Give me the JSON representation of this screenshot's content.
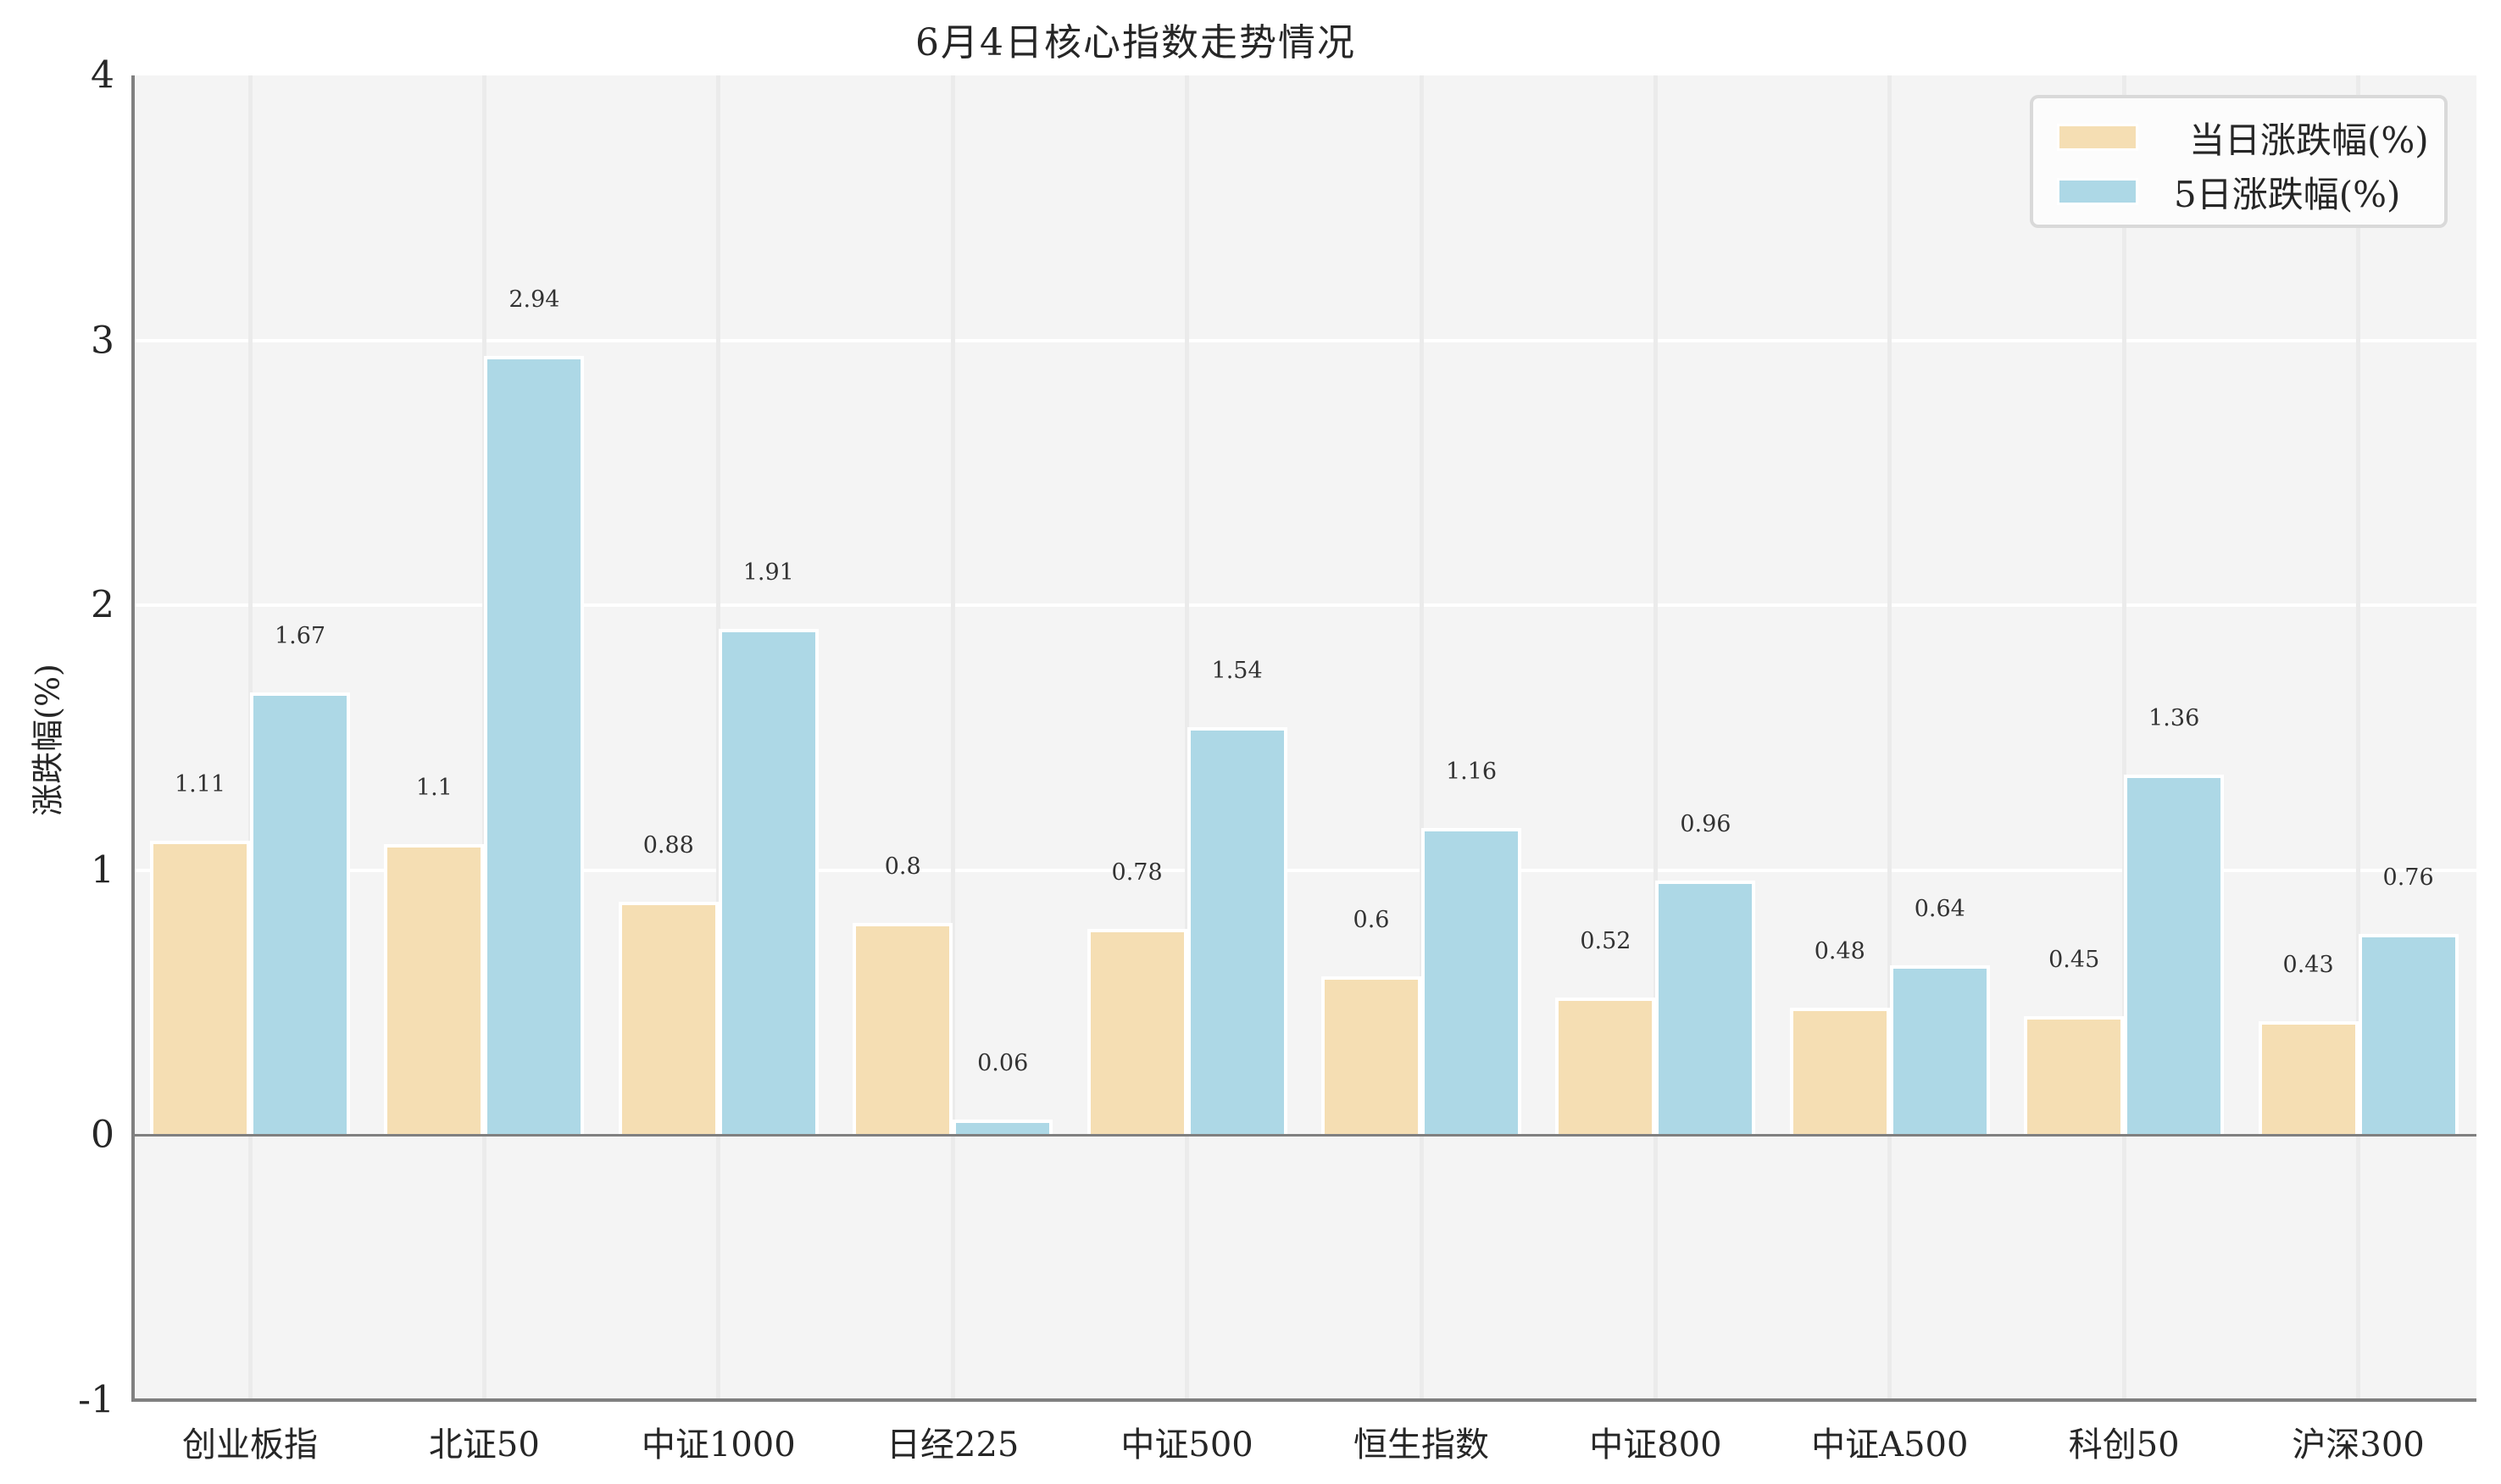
{
  "chart_data": {
    "type": "bar",
    "title": "6月4日核心指数走势情况",
    "xlabel": "",
    "ylabel": "涨跌幅(%)",
    "ylim": [
      -1,
      4
    ],
    "yticks": [
      -1,
      0,
      1,
      2,
      3,
      4
    ],
    "grid": true,
    "legend_position": "upper right",
    "categories": [
      "创业板指",
      "北证50",
      "中证1000",
      "日经225",
      "中证500",
      "恒生指数",
      "中证800",
      "中证A500",
      "科创50",
      "沪深300"
    ],
    "series": [
      {
        "name": "当日涨跌幅(%)",
        "color": "#F5DEB3",
        "values": [
          1.11,
          1.1,
          0.88,
          0.8,
          0.78,
          0.6,
          0.52,
          0.48,
          0.45,
          0.43
        ]
      },
      {
        "name": "5日涨跌幅(%)",
        "color": "#ADD8E6",
        "values": [
          1.67,
          2.94,
          1.91,
          0.06,
          1.54,
          1.16,
          0.96,
          0.64,
          1.36,
          0.76
        ]
      }
    ]
  },
  "colors": {
    "plot_background": "#F4F4F4",
    "axis": "#808080",
    "grid_horizontal": "#FFFFFF",
    "grid_vertical": "#EBEBEB"
  }
}
